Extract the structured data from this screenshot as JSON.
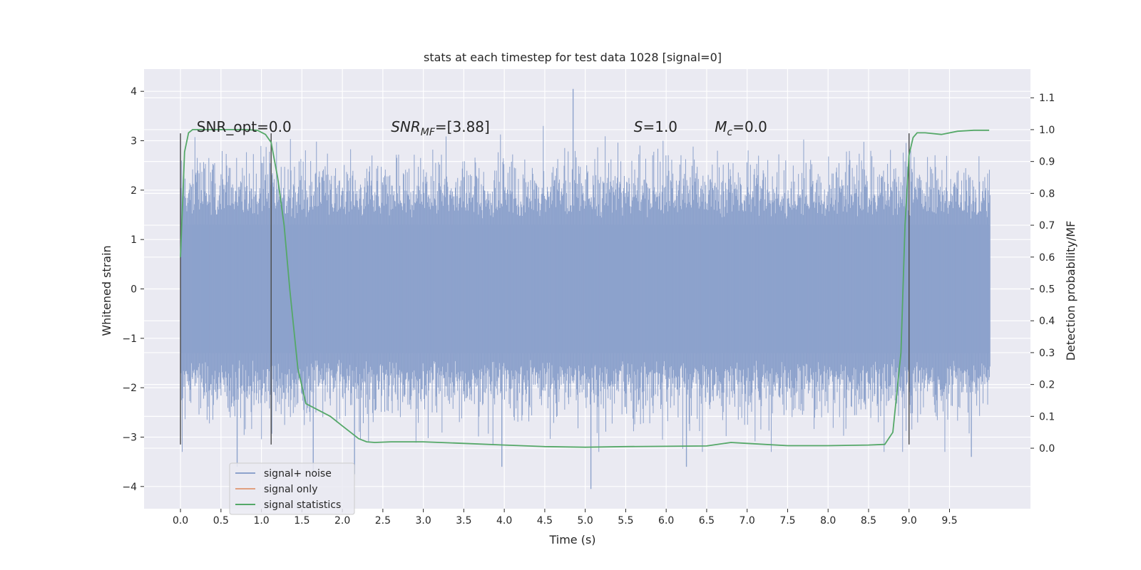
{
  "chart_data": {
    "type": "line",
    "title": "stats at each timestep for test data 1028 [signal=0]",
    "xlabel": "Time (s)",
    "ylabel": "Whitened strain",
    "y2label": "Detection probability/MF",
    "xlim": [
      -0.45,
      10.5
    ],
    "ylim": [
      -4.45,
      4.45
    ],
    "y2lim": [
      -0.19,
      1.19
    ],
    "x_ticks": [
      0.0,
      0.5,
      1.0,
      1.5,
      2.0,
      2.5,
      3.0,
      3.5,
      4.0,
      4.5,
      5.0,
      5.5,
      6.0,
      6.5,
      7.0,
      7.5,
      8.0,
      8.5,
      9.0,
      9.5
    ],
    "x_tick_labels": [
      "0.0",
      "0.5",
      "1.0",
      "1.5",
      "2.0",
      "2.5",
      "3.0",
      "3.5",
      "4.0",
      "4.5",
      "5.0",
      "5.5",
      "6.0",
      "6.5",
      "7.0",
      "7.5",
      "8.0",
      "8.5",
      "9.0",
      "9.5"
    ],
    "y_ticks": [
      -4,
      -3,
      -2,
      -1,
      0,
      1,
      2,
      3,
      4
    ],
    "y_tick_labels": [
      "−4",
      "−3",
      "−2",
      "−1",
      "0",
      "1",
      "2",
      "3",
      "4"
    ],
    "y2_ticks": [
      0.0,
      0.1,
      0.2,
      0.3,
      0.4,
      0.5,
      0.6,
      0.7,
      0.8,
      0.9,
      1.0,
      1.1
    ],
    "y2_tick_labels": [
      "0.0",
      "0.1",
      "0.2",
      "0.3",
      "0.4",
      "0.5",
      "0.6",
      "0.7",
      "0.8",
      "0.9",
      "1.0",
      "1.1"
    ],
    "grid": true,
    "legend_placement": "lower-left",
    "annotations": [
      {
        "text": "SNR_opt=0.0",
        "x": 0.2
      },
      {
        "text": "SNR",
        "sub": "MF",
        "rest": "=[3.88]",
        "italic": true,
        "x": 2.6
      },
      {
        "text": "S",
        "rest": "=1.0",
        "italic": true,
        "x": 5.6
      },
      {
        "text": "M",
        "sub": "c",
        "rest": "=0.0",
        "italic": true,
        "x": 6.6
      }
    ],
    "annotation_y": 3.18,
    "vertical_markers": [
      {
        "x": 0.0,
        "y": [
          -3.15,
          3.15
        ]
      },
      {
        "x": 1.12,
        "y": [
          -3.15,
          3.15
        ]
      },
      {
        "x": 9.0,
        "y": [
          -3.15,
          3.15
        ]
      }
    ],
    "series": [
      {
        "name": "signal+ noise",
        "color": "#8da2cc",
        "axis": "left",
        "x_range": [
          0.0,
          10.0
        ],
        "envelope_typical": 1.9,
        "notable_peaks": [
          {
            "x": 4.85,
            "y": 4.05
          },
          {
            "x": 5.07,
            "y": -4.05
          },
          {
            "x": 0.7,
            "y": -3.6
          },
          {
            "x": 3.97,
            "y": -3.6
          },
          {
            "x": 6.25,
            "y": -3.6
          },
          {
            "x": 9.77,
            "y": -3.4
          },
          {
            "x": 2.15,
            "y": -3.75
          },
          {
            "x": 1.64,
            "y": -3.7
          }
        ]
      },
      {
        "name": "signal only",
        "color": "#e1a080",
        "axis": "left",
        "values": []
      },
      {
        "name": "signal statistics",
        "color": "#55a868",
        "axis": "right",
        "x": [
          0.0,
          0.05,
          0.1,
          0.15,
          0.25,
          0.4,
          0.6,
          0.8,
          0.95,
          1.05,
          1.12,
          1.2,
          1.28,
          1.35,
          1.45,
          1.55,
          1.7,
          1.85,
          2.0,
          2.1,
          2.2,
          2.3,
          2.4,
          2.6,
          3.0,
          3.5,
          4.0,
          4.5,
          5.0,
          5.5,
          6.0,
          6.5,
          6.8,
          7.0,
          7.5,
          8.0,
          8.5,
          8.7,
          8.8,
          8.9,
          8.95,
          9.0,
          9.05,
          9.1,
          9.2,
          9.4,
          9.6,
          9.8,
          9.99
        ],
        "values": [
          0.6,
          0.93,
          0.99,
          1.0,
          1.0,
          1.0,
          1.0,
          1.0,
          0.998,
          0.985,
          0.96,
          0.85,
          0.7,
          0.5,
          0.25,
          0.14,
          0.12,
          0.1,
          0.07,
          0.05,
          0.03,
          0.02,
          0.018,
          0.02,
          0.02,
          0.015,
          0.01,
          0.005,
          0.003,
          0.005,
          0.006,
          0.007,
          0.018,
          0.015,
          0.008,
          0.008,
          0.01,
          0.012,
          0.05,
          0.3,
          0.7,
          0.92,
          0.975,
          0.99,
          0.99,
          0.985,
          0.995,
          0.998,
          0.998
        ]
      }
    ]
  }
}
